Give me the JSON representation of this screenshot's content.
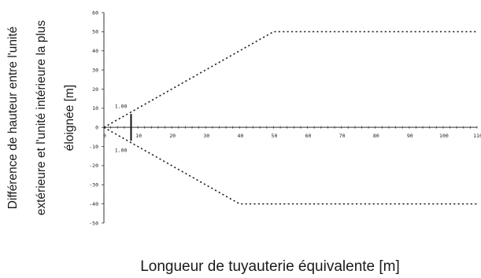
{
  "chart_data": {
    "type": "line",
    "xlabel": "Longueur de tuyauterie équivalente [m]",
    "ylabel_lines": [
      "Différence de hauteur entre l'unité",
      "extérieure et l'unité intérieure la plus",
      "éloignée [m]"
    ],
    "xlim": [
      0,
      110
    ],
    "ylim": [
      -50,
      60
    ],
    "x_ticks": [
      0,
      10,
      20,
      30,
      40,
      50,
      60,
      70,
      80,
      90,
      100,
      110
    ],
    "y_ticks": [
      60,
      50,
      40,
      30,
      20,
      10,
      0,
      -10,
      -20,
      -30,
      -40,
      -50
    ],
    "grid": false,
    "series": [
      {
        "style": "dotted",
        "color": "#222222",
        "x": [
          0,
          50,
          110
        ],
        "y": [
          0,
          50,
          50
        ]
      },
      {
        "style": "dotted",
        "color": "#222222",
        "x": [
          0,
          40,
          110
        ],
        "y": [
          0,
          -40,
          -40
        ]
      }
    ],
    "markers": [
      {
        "x": 8,
        "y_range": [
          -7,
          7
        ]
      }
    ],
    "annotations": [
      {
        "text": "1.00",
        "x": 5,
        "y": 11
      },
      {
        "text": "1.00",
        "x": 5,
        "y": -12
      }
    ]
  }
}
